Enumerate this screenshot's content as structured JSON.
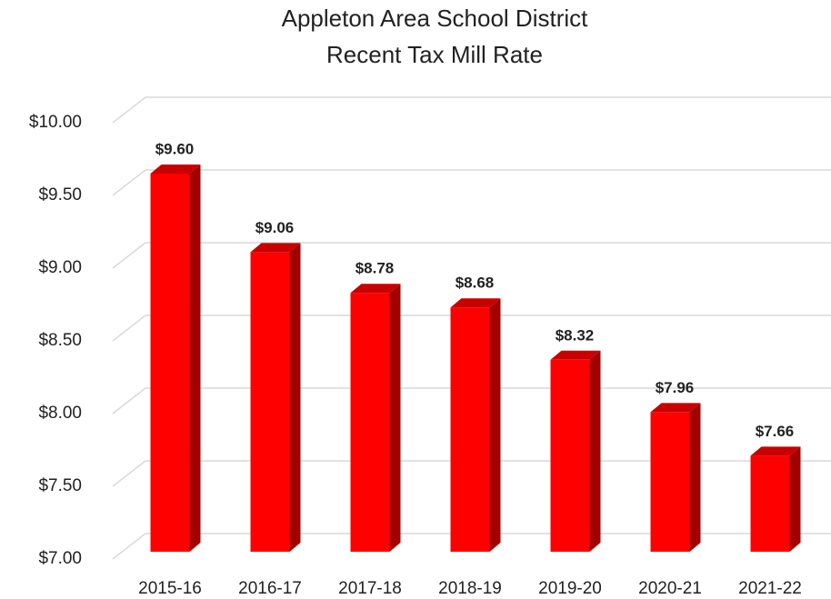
{
  "chart_data": {
    "type": "bar",
    "title": "Appleton Area School District",
    "subtitle": "Recent Tax Mill Rate",
    "categories": [
      "2015-16",
      "2016-17",
      "2017-18",
      "2018-19",
      "2019-20",
      "2020-21",
      "2021-22"
    ],
    "values": [
      9.6,
      9.06,
      8.78,
      8.68,
      8.32,
      7.96,
      7.66
    ],
    "value_labels": [
      "$9.60",
      "$9.06",
      "$8.78",
      "$8.68",
      "$8.32",
      "$7.96",
      "$7.66"
    ],
    "color": "#ff0000",
    "ylim": [
      7,
      10
    ],
    "yticks": [
      {
        "value": 7,
        "label": "$7.00"
      },
      {
        "value": 7.5,
        "label": "$7.50"
      },
      {
        "value": 8,
        "label": "$8.00"
      },
      {
        "value": 8.5,
        "label": "$8.50"
      },
      {
        "value": 9,
        "label": "$9.00"
      },
      {
        "value": 9.5,
        "label": "$9.50"
      },
      {
        "value": 10,
        "label": "$10.00"
      }
    ],
    "grid": true
  }
}
